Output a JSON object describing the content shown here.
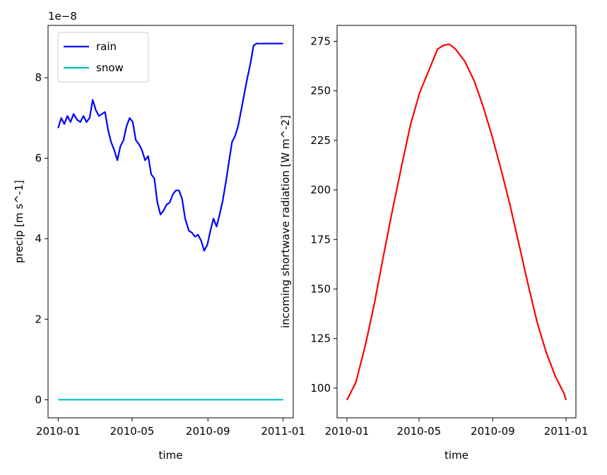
{
  "chart_data": [
    {
      "type": "line",
      "xlabel": "time",
      "ylabel": "precip [m s^-1]",
      "y_offset_label": "1e−8",
      "y_scale_note": "values in units of 1e-8",
      "xlim": [
        "2010-01-01",
        "2011-01-01"
      ],
      "ylim": [
        -0.45,
        9.3
      ],
      "x_ticks": [
        "2010-01",
        "2010-05",
        "2010-09",
        "2011-01"
      ],
      "y_ticks": [
        "0",
        "2",
        "4",
        "6",
        "8"
      ],
      "legend_position": "top-left",
      "series": [
        {
          "name": "rain",
          "color": "#0000ff",
          "x": [
            "2010-01-01",
            "2010-01-06",
            "2010-01-11",
            "2010-01-16",
            "2010-01-21",
            "2010-01-26",
            "2010-02-01",
            "2010-02-06",
            "2010-02-11",
            "2010-02-16",
            "2010-02-21",
            "2010-02-26",
            "2010-03-03",
            "2010-03-08",
            "2010-03-13",
            "2010-03-18",
            "2010-03-23",
            "2010-03-28",
            "2010-04-02",
            "2010-04-07",
            "2010-04-12",
            "2010-04-17",
            "2010-04-22",
            "2010-04-27",
            "2010-05-02",
            "2010-05-07",
            "2010-05-12",
            "2010-05-17",
            "2010-05-22",
            "2010-05-27",
            "2010-06-01",
            "2010-06-06",
            "2010-06-11",
            "2010-06-16",
            "2010-06-21",
            "2010-06-26",
            "2010-07-01",
            "2010-07-06",
            "2010-07-11",
            "2010-07-16",
            "2010-07-21",
            "2010-07-26",
            "2010-08-01",
            "2010-08-06",
            "2010-08-11",
            "2010-08-16",
            "2010-08-21",
            "2010-08-26",
            "2010-08-31",
            "2010-09-05",
            "2010-09-10",
            "2010-09-15",
            "2010-09-20",
            "2010-09-25",
            "2010-09-30",
            "2010-10-05",
            "2010-10-10",
            "2010-10-15",
            "2010-10-20",
            "2010-10-25",
            "2010-10-30",
            "2010-11-04",
            "2010-11-09",
            "2010-11-14",
            "2010-11-19",
            "2010-11-24",
            "2010-11-29",
            "2010-12-04",
            "2010-12-09",
            "2010-12-14",
            "2010-12-19",
            "2010-12-24",
            "2010-12-29",
            "2011-01-01"
          ],
          "values": [
            6.75,
            7.0,
            6.85,
            7.05,
            6.9,
            7.1,
            6.95,
            6.9,
            7.05,
            6.9,
            7.0,
            7.45,
            7.2,
            7.05,
            7.1,
            7.15,
            6.7,
            6.4,
            6.2,
            5.95,
            6.3,
            6.45,
            6.8,
            7.0,
            6.9,
            6.45,
            6.35,
            6.2,
            5.95,
            6.05,
            5.6,
            5.5,
            4.9,
            4.6,
            4.7,
            4.85,
            4.9,
            5.1,
            5.2,
            5.2,
            5.0,
            4.5,
            4.2,
            4.15,
            4.05,
            4.1,
            3.95,
            3.7,
            3.85,
            4.2,
            4.5,
            4.3,
            4.6,
            4.95,
            5.4,
            5.9,
            6.4,
            6.55,
            6.8,
            7.2,
            7.6,
            8.0,
            8.35,
            8.8,
            8.85,
            8.85,
            8.85,
            8.85,
            8.85,
            8.85,
            8.85,
            8.85,
            8.85,
            8.85
          ]
        },
        {
          "name": "snow",
          "color": "#00bfbf",
          "x": [
            "2010-01-01",
            "2011-01-01"
          ],
          "values": [
            0,
            0
          ]
        }
      ]
    },
    {
      "type": "line",
      "xlabel": "time",
      "ylabel": "incoming shortwave radiation [W m^-2]",
      "xlim": [
        "2010-01-01",
        "2011-01-01"
      ],
      "ylim": [
        85,
        283
      ],
      "x_ticks": [
        "2010-01",
        "2010-05",
        "2010-09",
        "2011-01"
      ],
      "y_ticks": [
        "100",
        "125",
        "150",
        "175",
        "200",
        "225",
        "250",
        "275"
      ],
      "series": [
        {
          "color": "#ff0000",
          "x": [
            "2010-01-01",
            "2010-01-16",
            "2010-02-01",
            "2010-02-16",
            "2010-03-03",
            "2010-03-18",
            "2010-04-02",
            "2010-04-17",
            "2010-05-02",
            "2010-05-17",
            "2010-06-01",
            "2010-06-11",
            "2010-06-21",
            "2010-07-01",
            "2010-07-16",
            "2010-08-01",
            "2010-08-16",
            "2010-08-31",
            "2010-09-15",
            "2010-09-30",
            "2010-10-15",
            "2010-10-30",
            "2010-11-14",
            "2010-11-29",
            "2010-12-14",
            "2010-12-29",
            "2011-01-01"
          ],
          "values": [
            94,
            103,
            122,
            143,
            167,
            190,
            212,
            233,
            249,
            260,
            271,
            273,
            273.5,
            271,
            265,
            255,
            242,
            227,
            210,
            192,
            172,
            152,
            133,
            118,
            106,
            97,
            94
          ]
        }
      ]
    }
  ]
}
